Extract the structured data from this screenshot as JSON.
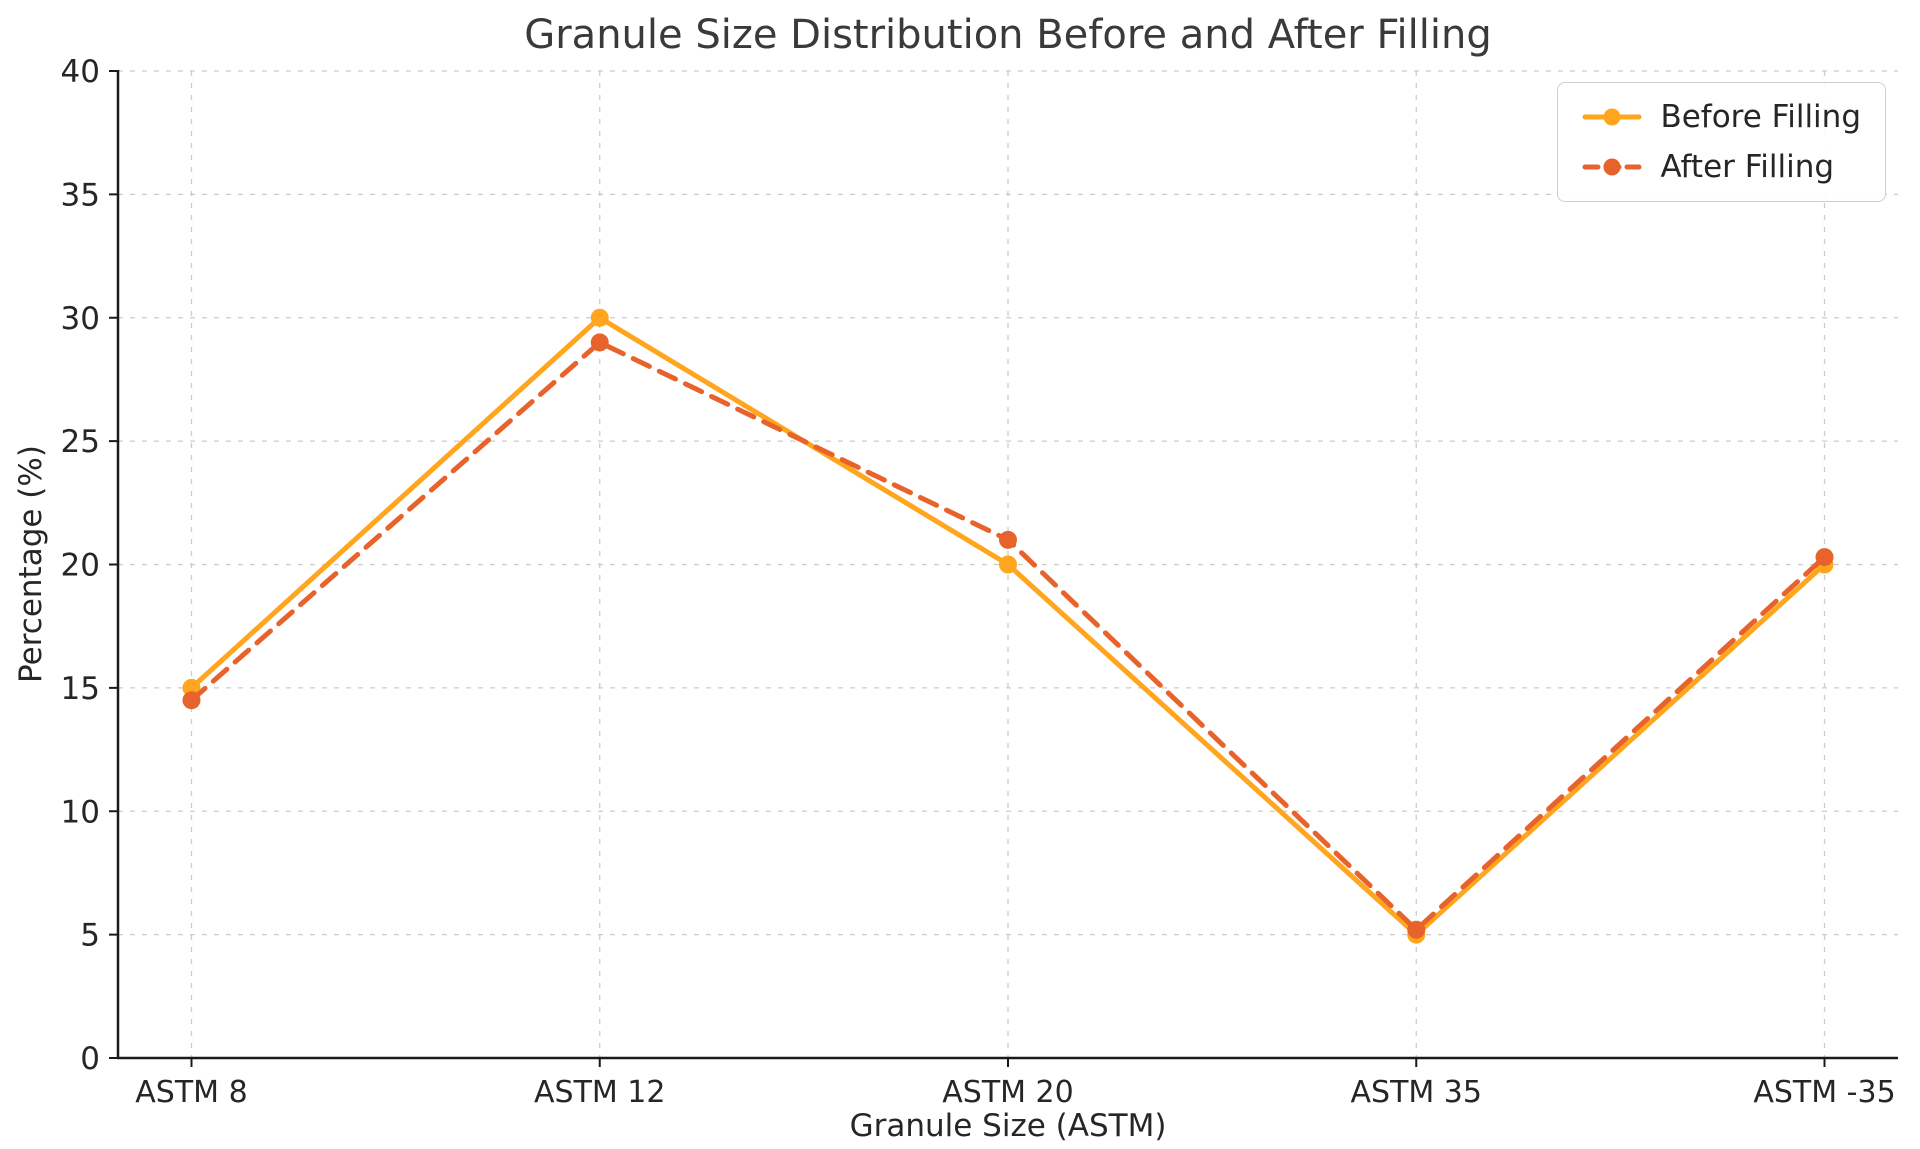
{
  "chart_data": {
    "type": "line",
    "title": "Granule Size Distribution Before and After Filling",
    "xlabel": "Granule Size (ASTM)",
    "ylabel": "Percentage (%)",
    "categories": [
      "ASTM 8",
      "ASTM 12",
      "ASTM 20",
      "ASTM 35",
      "ASTM -35"
    ],
    "series": [
      {
        "id": "before-filling",
        "name": "Before Filling",
        "values": [
          15,
          30,
          20,
          5,
          20
        ],
        "color": "#FFA51E",
        "line_style": "solid",
        "marker": "circle"
      },
      {
        "id": "after-filling",
        "name": "After Filling",
        "values": [
          14.5,
          29,
          21,
          5.2,
          20.3
        ],
        "color": "#E8622C",
        "line_style": "dashed",
        "marker": "circle"
      }
    ],
    "ylim": [
      0,
      40
    ],
    "ytick_step": 5,
    "yticks": [
      0,
      5,
      10,
      15,
      20,
      25,
      30,
      35,
      40
    ],
    "grid": true,
    "grid_color": "#cccccc",
    "axis_color": "#1a1a1a",
    "text_color": "#262626",
    "legend_position": "upper right"
  }
}
